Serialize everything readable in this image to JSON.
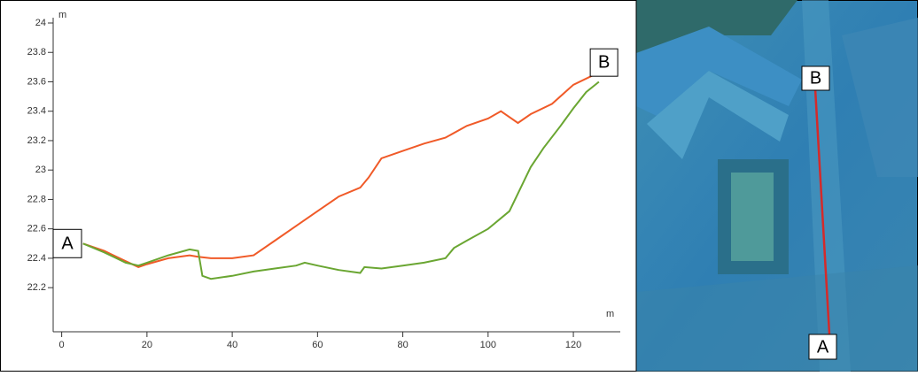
{
  "chart_data": {
    "type": "line",
    "x_unit": "m",
    "y_unit": "m",
    "xlim": [
      -2,
      131
    ],
    "ylim": [
      21.9,
      24
    ],
    "xticks": [
      0,
      20,
      40,
      60,
      80,
      100,
      120
    ],
    "yticks": [
      22.2,
      22.4,
      22.6,
      22.8,
      23,
      23.2,
      23.4,
      23.6,
      23.8,
      24
    ],
    "markers": {
      "start": "A",
      "end": "B"
    },
    "series": [
      {
        "color": "#f05a28",
        "x": [
          5,
          10,
          15,
          18,
          20,
          25,
          30,
          32,
          35,
          40,
          45,
          50,
          55,
          60,
          65,
          70,
          72,
          75,
          80,
          85,
          90,
          95,
          100,
          103,
          107,
          110,
          115,
          120,
          125
        ],
        "values": [
          22.5,
          22.45,
          22.38,
          22.34,
          22.36,
          22.4,
          22.42,
          22.41,
          22.4,
          22.4,
          22.42,
          22.52,
          22.62,
          22.72,
          22.82,
          22.88,
          22.95,
          23.08,
          23.13,
          23.18,
          23.22,
          23.3,
          23.35,
          23.4,
          23.32,
          23.38,
          23.45,
          23.58,
          23.65
        ]
      },
      {
        "color": "#6aa632",
        "x": [
          5,
          10,
          15,
          18,
          20,
          25,
          30,
          32,
          33,
          35,
          40,
          45,
          50,
          55,
          57,
          60,
          65,
          70,
          71,
          75,
          80,
          85,
          90,
          92,
          95,
          100,
          105,
          108,
          110,
          113,
          117,
          120,
          123,
          126
        ],
        "values": [
          22.5,
          22.44,
          22.37,
          22.35,
          22.37,
          22.42,
          22.46,
          22.45,
          22.28,
          22.26,
          22.28,
          22.31,
          22.33,
          22.35,
          22.37,
          22.35,
          22.32,
          22.3,
          22.34,
          22.33,
          22.35,
          22.37,
          22.4,
          22.47,
          22.52,
          22.6,
          22.72,
          22.9,
          23.02,
          23.15,
          23.3,
          23.42,
          23.53,
          23.6
        ]
      }
    ]
  }
}
